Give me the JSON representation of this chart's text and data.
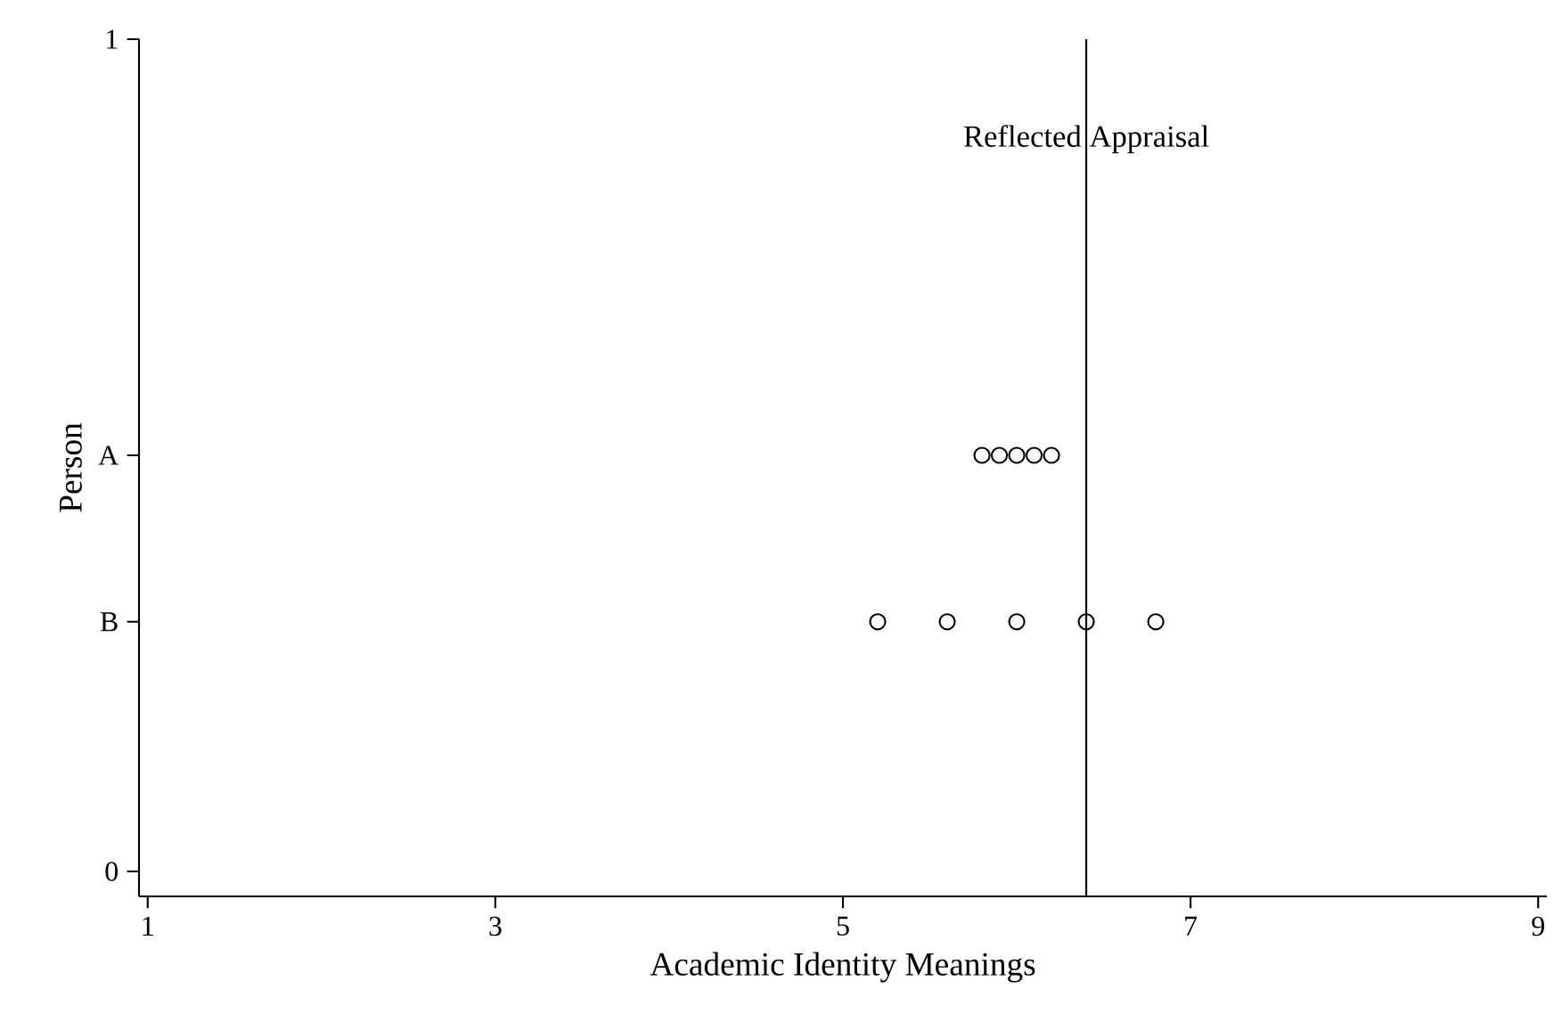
{
  "chart_data": {
    "type": "scatter",
    "xlabel": "Academic Identity Meanings",
    "ylabel": "Person",
    "xlim": [
      0.95,
      9.05
    ],
    "xticks": [
      1,
      3,
      5,
      7,
      9
    ],
    "ylim": [
      -0.03,
      1.0
    ],
    "yticks": [
      0,
      1,
      {
        "value": 0.5,
        "label": "A"
      },
      {
        "value": 0.3,
        "label": "B"
      }
    ],
    "marker": "circle",
    "series": [
      {
        "color": "#000000",
        "x": [
          5.8,
          5.9,
          6.0,
          6.1,
          6.2
        ],
        "values": [
          0.5,
          0.5,
          0.5,
          0.5,
          0.5
        ]
      },
      {
        "color": "#000000",
        "x": [
          5.2,
          5.6,
          6.0,
          6.4,
          6.8
        ],
        "values": [
          0.3,
          0.3,
          0.3,
          0.3,
          0.3
        ]
      }
    ],
    "ref_lines": [
      {
        "axis": "x",
        "value": 6.4,
        "color": "#000000"
      }
    ],
    "annotations": [
      {
        "text": "Reflected Appraisal",
        "x": 6.4,
        "y": 0.88
      }
    ]
  }
}
